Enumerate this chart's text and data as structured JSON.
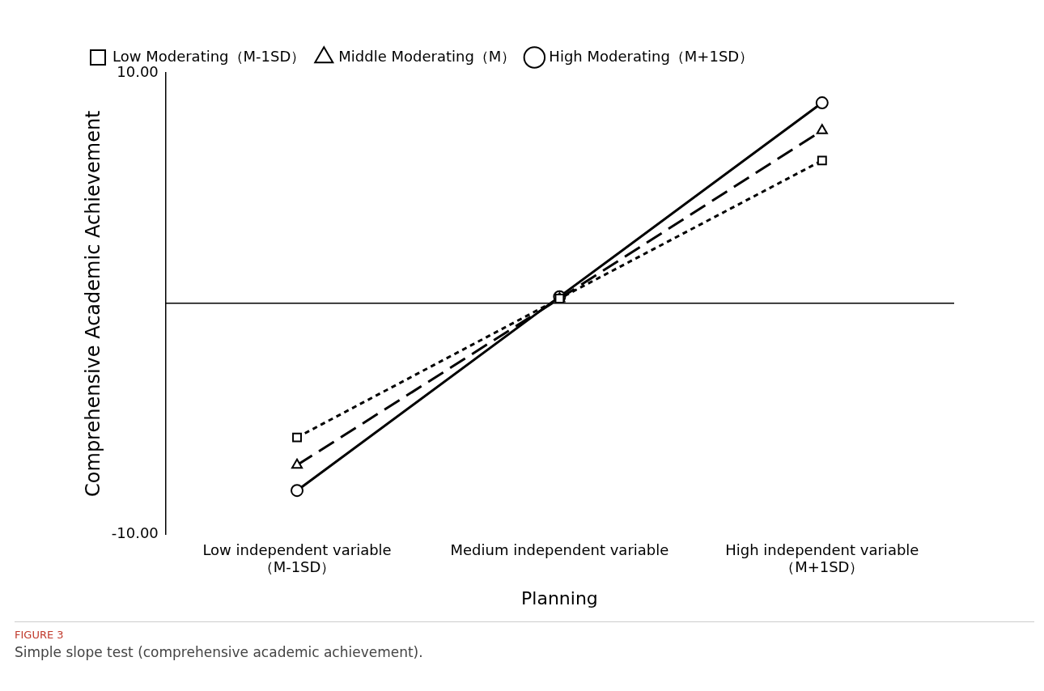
{
  "chart_data": {
    "type": "line",
    "xlabel": "Planning",
    "ylabel": "Comprehensive Academic Achievement",
    "categories": [
      "Low independent variable\n（M-1SD）",
      "Medium independent variable",
      "High independent variable\n（M+1SD）"
    ],
    "ylim": [
      -10,
      10
    ],
    "yticks": [
      {
        "value": 10,
        "label": "10.00"
      },
      {
        "value": -10,
        "label": "-10.00"
      }
    ],
    "grid": false,
    "legend": "top left",
    "series": [
      {
        "name": "Low Moderating（M-1SD）",
        "color": "#000000",
        "values": [
          -5.8,
          0.22,
          6.2
        ],
        "line_style": "dotted",
        "marker": "square"
      },
      {
        "name": "Middle Moderating（M）",
        "color": "#000000",
        "values": [
          -7,
          0.22,
          7.5
        ],
        "line_style": "dashed",
        "marker": "triangle"
      },
      {
        "name": "High Moderating（M+1SD）",
        "color": "#000000",
        "values": [
          -8.1,
          0.3,
          8.7
        ],
        "line_style": "solid",
        "marker": "circle"
      }
    ],
    "annotations": [
      "FIGURE 3",
      "Simple slope test (comprehensive academic achievement)."
    ]
  }
}
